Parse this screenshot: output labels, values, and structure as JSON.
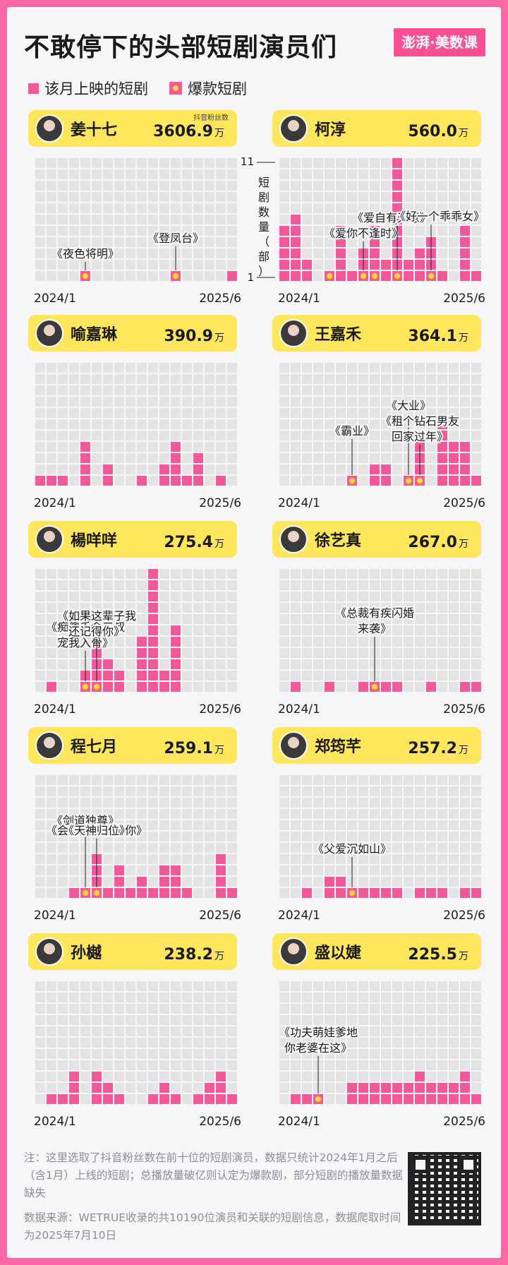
{
  "header": {
    "title": "不敢停下的头部短剧演员们",
    "logo": "澎湃·美数课"
  },
  "legend": {
    "monthly": "该月上映的短剧",
    "hit": "爆款短剧"
  },
  "colors": {
    "bar": "#f35998",
    "empty": "#e4e4e7",
    "hit": "#ffd84a",
    "card": "#ffe65c",
    "background": "#fb6aa6"
  },
  "footer": {
    "note": "注：这里选取了抖音粉丝数在前十位的短剧演员，数据只统计2024年1月之后（含1月）上线的短剧；总播放量破亿则认定为爆款剧，部分短剧的播放量数据缺失",
    "source": "数据来源：WETRUE收录的共10190位演员和关联的短剧信息，数据爬取时间为2025年7月10日"
  },
  "chart_data": {
    "type": "bar",
    "title": "不敢停下的头部短剧演员们",
    "categories": [
      "2024/1",
      "2024/2",
      "2024/3",
      "2024/4",
      "2024/5",
      "2024/6",
      "2024/7",
      "2024/8",
      "2024/9",
      "2024/10",
      "2024/11",
      "2024/12",
      "2025/1",
      "2025/2",
      "2025/3",
      "2025/4",
      "2025/5",
      "2025/6"
    ],
    "x_tick_labels": [
      "2024/1",
      "2025/6"
    ],
    "fans_label": "抖音粉丝数",
    "fans_unit": "万",
    "ylabel": "短剧数量（部）",
    "y_ticks": [
      "11",
      "1"
    ],
    "ylim": [
      0,
      11
    ],
    "series": [
      {
        "name": "姜十七",
        "fans": "3606.9",
        "values": [
          0,
          0,
          0,
          0,
          1,
          0,
          0,
          0,
          0,
          0,
          0,
          0,
          1,
          0,
          0,
          0,
          0,
          1
        ],
        "hits": [
          4,
          12
        ],
        "annotations": [
          {
            "text": "《夜色将明》",
            "month": 4
          },
          {
            "text": "《登凤台》",
            "month": 12
          }
        ]
      },
      {
        "name": "柯淳",
        "fans": "560.0",
        "values": [
          5,
          6,
          2,
          0,
          1,
          5,
          1,
          3,
          5,
          2,
          11,
          2,
          3,
          4,
          1,
          0,
          5,
          1
        ],
        "hits": [
          4,
          7,
          8,
          10,
          13
        ],
        "annotations": [
          {
            "text": "《爱你不逢时》",
            "month": 7
          },
          {
            "text": "《爱自有天意》",
            "month": 10
          },
          {
            "text": "《好一个乖乖女》",
            "month": 13
          }
        ]
      },
      {
        "name": "喻嘉琳",
        "fans": "390.9",
        "values": [
          1,
          1,
          1,
          0,
          4,
          0,
          2,
          0,
          0,
          1,
          0,
          2,
          4,
          1,
          3,
          0,
          1,
          0
        ],
        "hits": [],
        "annotations": []
      },
      {
        "name": "王嘉禾",
        "fans": "364.1",
        "values": [
          0,
          0,
          0,
          0,
          0,
          0,
          1,
          0,
          2,
          2,
          0,
          1,
          4,
          0,
          6,
          4,
          4,
          1
        ],
        "hits": [
          6,
          11,
          12
        ],
        "annotations": [
          {
            "text": "《霸业》",
            "month": 6
          },
          {
            "text": "《大业》",
            "month": 11
          },
          {
            "text": "《租个钻石男友回家过年》",
            "month": 12
          }
        ]
      },
      {
        "name": "楊咩咩",
        "fans": "275.4",
        "values": [
          0,
          1,
          0,
          0,
          2,
          4,
          3,
          2,
          0,
          5,
          11,
          2,
          6,
          0,
          0,
          0,
          0,
          0
        ],
        "hits": [
          4,
          5
        ],
        "annotations": [
          {
            "text": "《痴傻千金三叔宠我入骨》",
            "month": 4
          },
          {
            "text": "《如果这辈子我还记得你》",
            "month": 5
          }
        ]
      },
      {
        "name": "徐艺真",
        "fans": "267.0",
        "values": [
          0,
          1,
          0,
          0,
          1,
          0,
          0,
          1,
          1,
          1,
          1,
          0,
          0,
          1,
          0,
          0,
          1,
          1
        ],
        "hits": [
          8
        ],
        "annotations": [
          {
            "text": "《总裁有疾闪婚来袭》",
            "month": 8
          }
        ]
      },
      {
        "name": "程七月",
        "fans": "259.1",
        "values": [
          0,
          0,
          0,
          1,
          1,
          4,
          1,
          3,
          1,
          2,
          1,
          3,
          3,
          1,
          0,
          0,
          4,
          1
        ],
        "hits": [
          4,
          5
        ],
        "annotations": [
          {
            "text": "《剑道独尊》",
            "month": 4
          },
          {
            "text": "《会有天使去爱你》",
            "month": 5
          },
          {
            "text": "《天神归位》",
            "month": 5
          }
        ]
      },
      {
        "name": "郑筠芊",
        "fans": "257.2",
        "values": [
          0,
          0,
          1,
          0,
          2,
          2,
          1,
          1,
          1,
          1,
          1,
          0,
          1,
          1,
          1,
          0,
          1,
          1
        ],
        "hits": [
          6
        ],
        "annotations": [
          {
            "text": "《父爱沉如山》",
            "month": 6
          }
        ]
      },
      {
        "name": "孙樾",
        "fans": "238.2",
        "values": [
          0,
          1,
          1,
          3,
          0,
          3,
          2,
          1,
          0,
          0,
          1,
          2,
          1,
          0,
          1,
          2,
          3,
          1
        ],
        "hits": [],
        "annotations": []
      },
      {
        "name": "盛以婕",
        "fans": "225.5",
        "values": [
          0,
          1,
          1,
          1,
          0,
          0,
          2,
          2,
          2,
          2,
          2,
          2,
          3,
          2,
          2,
          2,
          3,
          1
        ],
        "hits": [
          3
        ],
        "annotations": [
          {
            "text": "《功夫萌娃爹地你老婆在这》",
            "month": 3
          }
        ]
      }
    ]
  }
}
